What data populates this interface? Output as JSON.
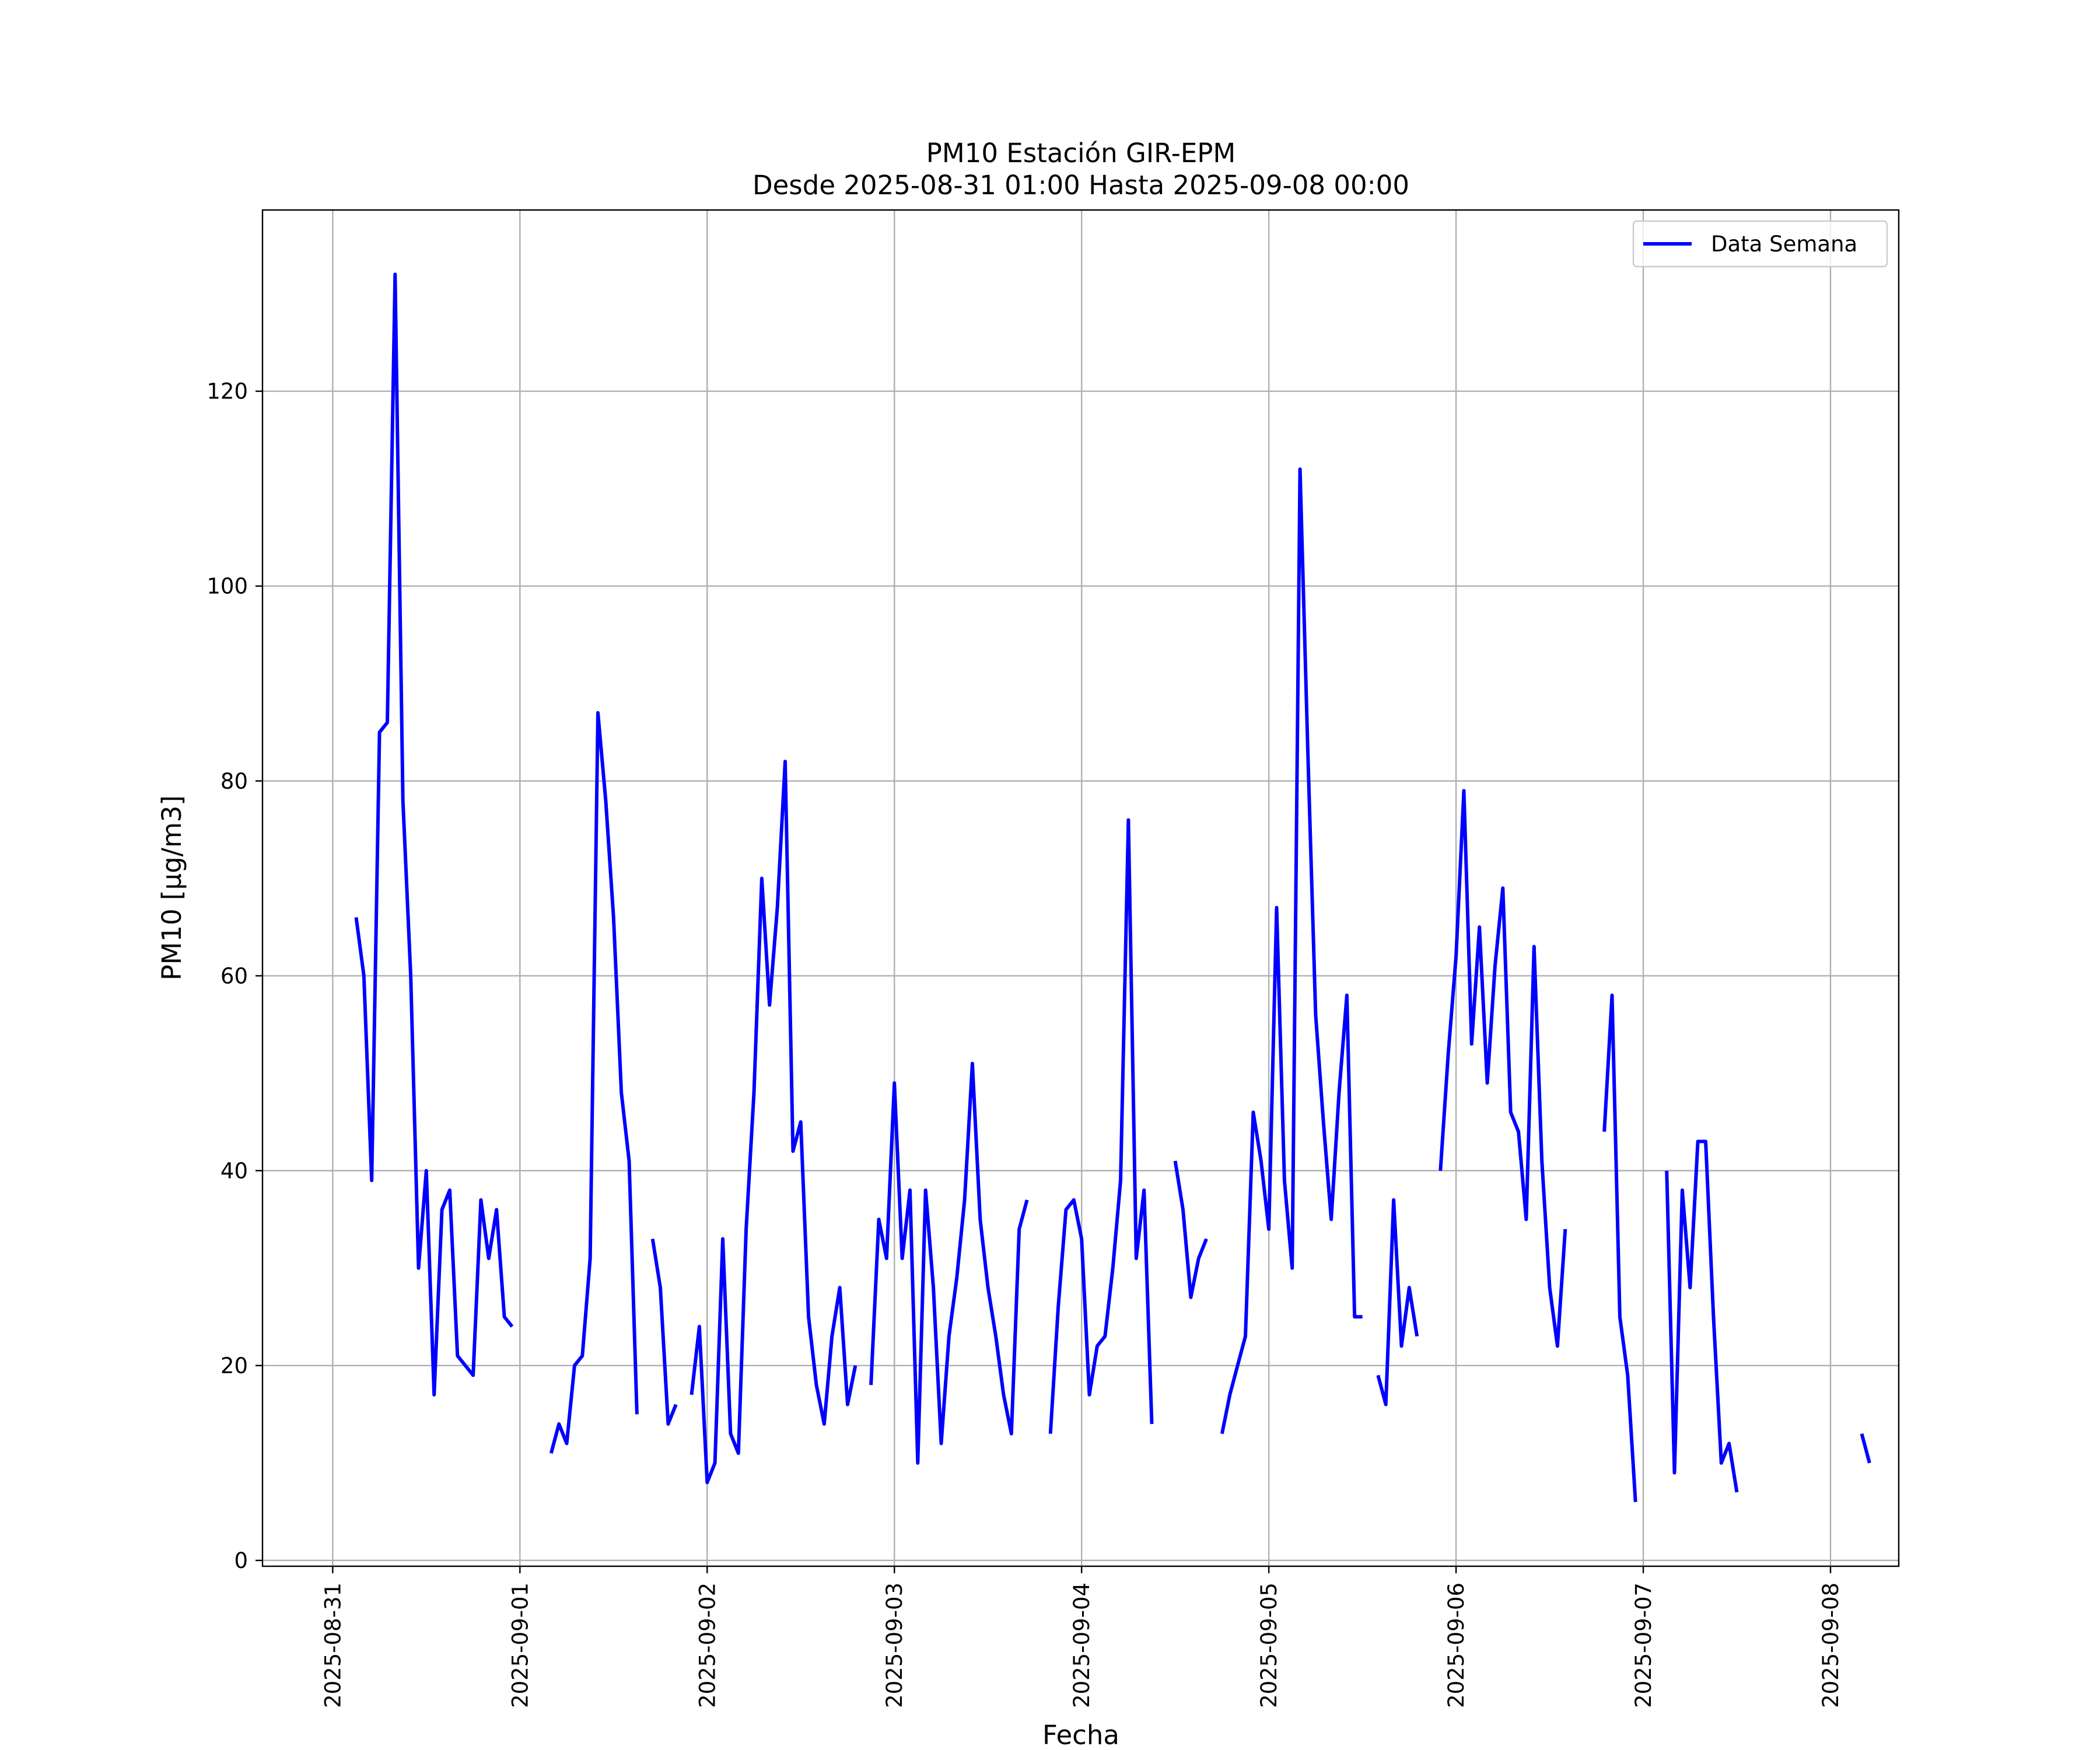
{
  "chart_data": {
    "type": "line",
    "title": "PM10 Estación GIR-EPM",
    "subtitle": "Desde 2025-08-31 01:00 Hasta 2025-09-08 00:00",
    "xlabel": "Fecha",
    "ylabel": "PM10 [μg/m3]",
    "xlim": [
      "2025-08-30 15:00",
      "2025-09-08 08:45"
    ],
    "ylim": [
      -0.6,
      138.6
    ],
    "x_ticks": [
      "2025-08-31",
      "2025-09-01",
      "2025-09-02",
      "2025-09-03",
      "2025-09-04",
      "2025-09-05",
      "2025-09-06",
      "2025-09-07",
      "2025-09-08"
    ],
    "y_ticks": [
      0,
      20,
      40,
      60,
      80,
      100,
      120
    ],
    "grid": true,
    "legend_position": "top-right",
    "series": [
      {
        "name": "Data Semana",
        "color": "#0000ff",
        "x_start": "2025-08-31 03:00",
        "x_step_hours": 1,
        "values": [
          66,
          60,
          39,
          85,
          86,
          132,
          78,
          60,
          30,
          40,
          17,
          36,
          38,
          21,
          20,
          19,
          37,
          31,
          36,
          25,
          24,
          null,
          null,
          null,
          null,
          11,
          14,
          12,
          20,
          21,
          31,
          87,
          78,
          66,
          48,
          41,
          15,
          null,
          33,
          28,
          14,
          16,
          null,
          17,
          24,
          8,
          10,
          33,
          13,
          11,
          34,
          48,
          70,
          57,
          67,
          82,
          42,
          45,
          25,
          18,
          14,
          23,
          28,
          16,
          20,
          null,
          18,
          35,
          31,
          49,
          31,
          38,
          10,
          38,
          28,
          12,
          23,
          29,
          37,
          51,
          35,
          28,
          23,
          17,
          13,
          34,
          37,
          null,
          null,
          13,
          26,
          36,
          37,
          33,
          17,
          22,
          23,
          30,
          39,
          76,
          31,
          38,
          14,
          null,
          null,
          41,
          36,
          27,
          31,
          33,
          null,
          13,
          17,
          20,
          23,
          46,
          41,
          34,
          67,
          39,
          30,
          112,
          83,
          56,
          45,
          35,
          48,
          58,
          25,
          25,
          null,
          19,
          16,
          37,
          22,
          28,
          23,
          null,
          null,
          40,
          52,
          62,
          79,
          53,
          65,
          49,
          61,
          69,
          46,
          44,
          35,
          63,
          41,
          28,
          22,
          34,
          null,
          null,
          null,
          null,
          44,
          58,
          25,
          19,
          6,
          null,
          null,
          null,
          40,
          9,
          38,
          28,
          43,
          43,
          25,
          10,
          12,
          7,
          null,
          null,
          null,
          null,
          null,
          null,
          null,
          null,
          null,
          null,
          null,
          null,
          null,
          null,
          null,
          13,
          10
        ]
      }
    ]
  }
}
